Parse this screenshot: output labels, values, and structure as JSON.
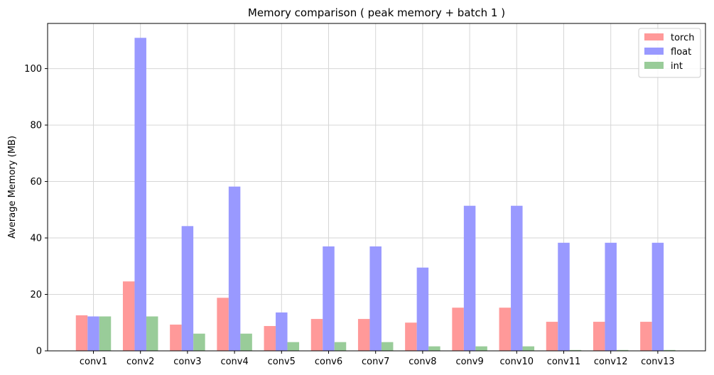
{
  "chart_data": {
    "type": "bar",
    "title": "Memory comparison ( peak memory + batch 1 )",
    "xlabel": "",
    "ylabel": "Average Memory (MB)",
    "ylim": [
      0,
      116
    ],
    "yticks": [
      0,
      20,
      40,
      60,
      80,
      100
    ],
    "grid": true,
    "legend_placement": "top-right",
    "categories": [
      "conv1",
      "conv2",
      "conv3",
      "conv4",
      "conv5",
      "conv6",
      "conv7",
      "conv8",
      "conv9",
      "conv10",
      "conv11",
      "conv12",
      "conv13"
    ],
    "series": [
      {
        "name": "torch",
        "color": "#ff9999",
        "values": [
          12.6,
          24.6,
          9.3,
          18.8,
          8.8,
          11.3,
          11.3,
          10.0,
          15.3,
          15.3,
          10.3,
          10.3,
          10.3
        ]
      },
      {
        "name": "float",
        "color": "#9999ff",
        "values": [
          12.2,
          110.9,
          44.2,
          58.2,
          13.6,
          37.0,
          37.0,
          29.5,
          51.4,
          51.4,
          38.3,
          38.3,
          38.3
        ]
      },
      {
        "name": "int",
        "color": "#99cc99",
        "values": [
          12.2,
          12.2,
          6.1,
          6.1,
          3.1,
          3.1,
          3.1,
          1.6,
          1.6,
          1.6,
          0.3,
          0.3,
          0.3
        ]
      }
    ]
  }
}
